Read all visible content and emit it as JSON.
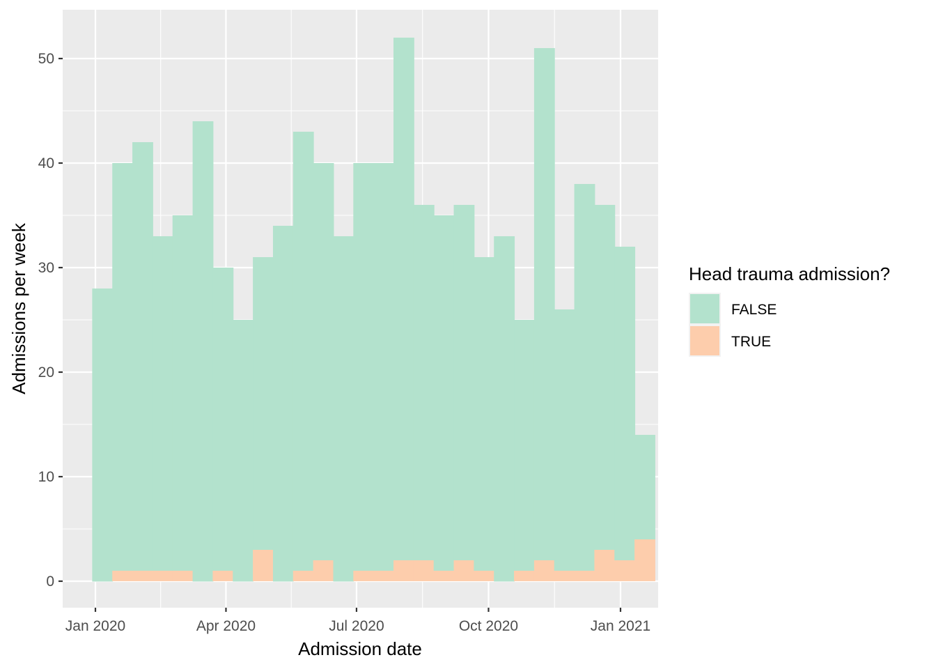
{
  "chart_data": {
    "type": "bar",
    "stacked": true,
    "bin_width": "1 week",
    "x": [
      "2019-12-30",
      "2020-01-13",
      "2020-01-27",
      "2020-02-10",
      "2020-02-24",
      "2020-03-09",
      "2020-03-23",
      "2020-04-06",
      "2020-04-20",
      "2020-05-04",
      "2020-05-18",
      "2020-06-01",
      "2020-06-15",
      "2020-06-29",
      "2020-07-13",
      "2020-07-27",
      "2020-08-10",
      "2020-08-24",
      "2020-09-07",
      "2020-09-21",
      "2020-10-05",
      "2020-10-19",
      "2020-11-02",
      "2020-11-16",
      "2020-11-30",
      "2020-12-14",
      "2020-12-28",
      "2021-01-11",
      "2021-01-25",
      "2021-02-08",
      "2021-02-22"
    ],
    "series": [
      {
        "name": "FALSE",
        "color": "#B3E2CD",
        "values": [
          28,
          39,
          41,
          32,
          34,
          44,
          29,
          25,
          28,
          34,
          42,
          38,
          33,
          39,
          39,
          50,
          34,
          34,
          34,
          30,
          33,
          24,
          49,
          25,
          37,
          33,
          30,
          10,
          0,
          0,
          0
        ]
      },
      {
        "name": "TRUE",
        "color": "#FDCDAC",
        "values": [
          0,
          1,
          1,
          1,
          1,
          0,
          1,
          0,
          3,
          0,
          1,
          2,
          0,
          1,
          1,
          2,
          2,
          1,
          2,
          1,
          0,
          1,
          2,
          1,
          1,
          3,
          2,
          4,
          0,
          0,
          0
        ]
      }
    ],
    "xlabel": "Admission date",
    "ylabel": "Admissions per week",
    "ylim": [
      0,
      54
    ],
    "yticks": [
      0,
      10,
      20,
      30,
      40,
      50
    ],
    "xticks": [
      {
        "date": "2020-01-01",
        "label": "Jan 2020"
      },
      {
        "date": "2020-04-01",
        "label": "Apr 2020"
      },
      {
        "date": "2020-07-01",
        "label": "Jul 2020"
      },
      {
        "date": "2020-10-01",
        "label": "Oct 2020"
      },
      {
        "date": "2021-01-01",
        "label": "Jan 2021"
      }
    ],
    "legend": {
      "title": "Head trauma admission?",
      "position": "right",
      "entries": [
        "FALSE",
        "TRUE"
      ]
    },
    "grid": true
  }
}
